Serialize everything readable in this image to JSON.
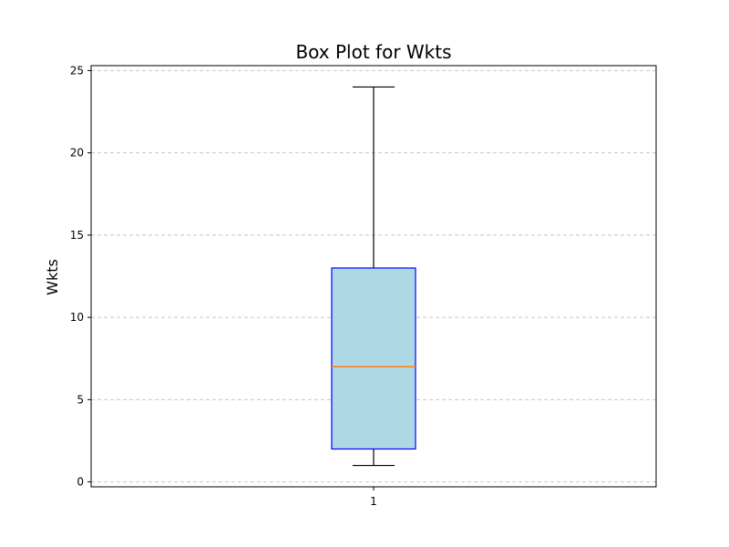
{
  "chart_data": {
    "type": "box",
    "title": "Box Plot for Wkts",
    "xlabel": "",
    "ylabel": "Wkts",
    "ylim": [
      -0.3,
      25.3
    ],
    "yticks": [
      0,
      5,
      10,
      15,
      20,
      25
    ],
    "categories": [
      "1"
    ],
    "grid": "y-dashed",
    "series": [
      {
        "whisker_low": 1,
        "q1": 2,
        "median": 7,
        "q3": 13,
        "whisker_high": 24
      }
    ],
    "colors": {
      "box_fill": "#add8e6",
      "box_edge": "#0000ff",
      "median": "#ff7f0e",
      "whisker": "#000000",
      "grid": "#c8c8c8"
    }
  }
}
